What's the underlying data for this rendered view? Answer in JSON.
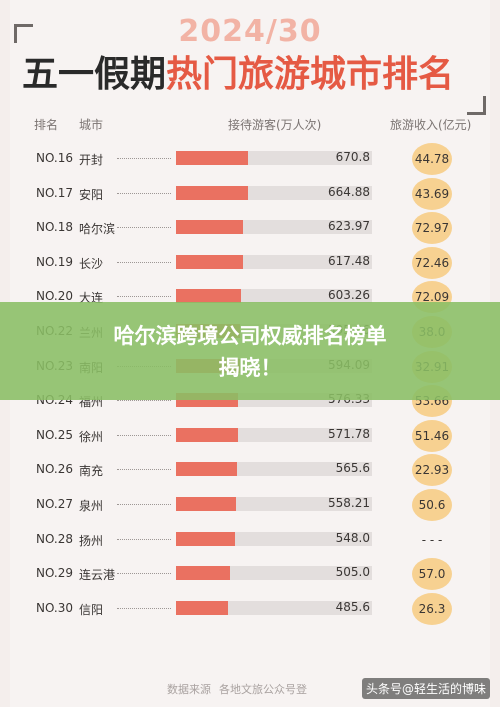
{
  "header": {
    "year": "2024/30",
    "title_dark": "五一假期",
    "title_red": "热门旅游城市排名"
  },
  "columns": {
    "rank": "排名",
    "city": "城市",
    "visits": "接待游客(万人次)",
    "revenue": "旅游收入(亿元)"
  },
  "banner": {
    "line1": "哈尔滨跨境公司权威排名榜单",
    "line2": "揭晓！"
  },
  "chart_data": {
    "type": "table",
    "visits_scale_max": 1000,
    "rows": [
      {
        "rank": "NO.16",
        "city": "开封",
        "visits": "670.8",
        "revenue": "44.78",
        "level": 0.67
      },
      {
        "rank": "NO.17",
        "city": "安阳",
        "visits": "664.88",
        "revenue": "43.69",
        "level": 0.66
      },
      {
        "rank": "NO.18",
        "city": "哈尔滨",
        "visits": "623.97",
        "revenue": "72.97",
        "level": 0.62
      },
      {
        "rank": "NO.19",
        "city": "长沙",
        "visits": "617.48",
        "revenue": "72.46",
        "level": 0.62
      },
      {
        "rank": "NO.20",
        "city": "大连",
        "visits": "603.26",
        "revenue": "72.09",
        "level": 0.6
      },
      {
        "rank": "NO.22",
        "city": "兰州",
        "visits": "595.06",
        "revenue": "38.0",
        "level": 0.6
      },
      {
        "rank": "NO.23",
        "city": "南阳",
        "visits": "594.09",
        "revenue": "32.91",
        "level": 0.59
      },
      {
        "rank": "NO.24",
        "city": "福州",
        "visits": "576.33",
        "revenue": "53.66",
        "level": 0.58
      },
      {
        "rank": "NO.25",
        "city": "徐州",
        "visits": "571.78",
        "revenue": "51.46",
        "level": 0.57
      },
      {
        "rank": "NO.26",
        "city": "南充",
        "visits": "565.6",
        "revenue": "22.93",
        "level": 0.57
      },
      {
        "rank": "NO.27",
        "city": "泉州",
        "visits": "558.21",
        "revenue": "50.6",
        "level": 0.56
      },
      {
        "rank": "NO.28",
        "city": "扬州",
        "visits": "548.0",
        "revenue": "- - -",
        "level": 0.55
      },
      {
        "rank": "NO.29",
        "city": "连云港",
        "visits": "505.0",
        "revenue": "57.0",
        "level": 0.51
      },
      {
        "rank": "NO.30",
        "city": "信阳",
        "visits": "485.6",
        "revenue": "26.3",
        "level": 0.49
      }
    ]
  },
  "footer": {
    "source_label": "数据来源",
    "source_text": "各地文旅公众号登"
  },
  "watermark": "头条号@轻生活的博味",
  "colors": {
    "bar": "#ea7161",
    "track": "#e3dedd",
    "revenue_circle": "#f7d191",
    "banner": "#8abe64",
    "title_red": "#e55a44"
  }
}
